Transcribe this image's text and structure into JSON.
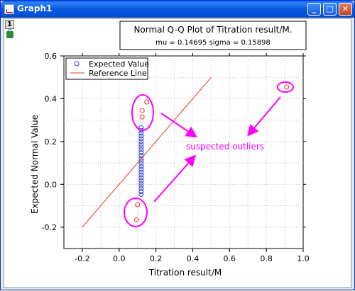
{
  "window": {
    "title": "Graph1",
    "layer_number": "1",
    "buttons": [
      "minimize",
      "maximize",
      "close"
    ]
  },
  "chart_data": {
    "type": "scatter",
    "title": "Normal Q-Q Plot of Titration result/M.",
    "subtitle": "mu = 0.14695   sigma = 0.15898",
    "xlabel": "Titration result/M",
    "ylabel": "Expected Normal Value",
    "xlim": [
      -0.3,
      1.0
    ],
    "ylim": [
      -0.3,
      0.6
    ],
    "xticks": [
      -0.2,
      0.0,
      0.2,
      0.4,
      0.6,
      0.8,
      1.0
    ],
    "xtick_labels": [
      "-0.2",
      "0.0",
      "0.2",
      "0.4",
      "0.6",
      "0.8",
      "1.0"
    ],
    "yticks": [
      -0.2,
      0.0,
      0.2,
      0.4,
      0.6
    ],
    "ytick_labels": [
      "-0.2",
      "0.0",
      "0.2",
      "0.4",
      "0.6"
    ],
    "grid": true,
    "legend": {
      "placement": "top-left",
      "entries": [
        "Expected Value",
        "Reference Line"
      ]
    },
    "series": [
      {
        "name": "Expected Value",
        "mark": "circle",
        "color": "#3344CC",
        "points": [
          [
            0.12,
            0.265
          ],
          [
            0.12,
            0.252
          ],
          [
            0.12,
            0.239
          ],
          [
            0.12,
            0.226
          ],
          [
            0.12,
            0.213
          ],
          [
            0.12,
            0.2
          ],
          [
            0.12,
            0.187
          ],
          [
            0.12,
            0.174
          ],
          [
            0.12,
            0.161
          ],
          [
            0.12,
            0.148
          ],
          [
            0.12,
            0.135
          ],
          [
            0.12,
            0.122
          ],
          [
            0.12,
            0.109
          ],
          [
            0.12,
            0.096
          ],
          [
            0.12,
            0.083
          ],
          [
            0.12,
            0.07
          ],
          [
            0.12,
            0.057
          ],
          [
            0.12,
            0.044
          ],
          [
            0.12,
            0.031
          ],
          [
            0.12,
            0.018
          ],
          [
            0.12,
            0.005
          ],
          [
            0.12,
            -0.008
          ],
          [
            0.12,
            -0.021
          ],
          [
            0.12,
            -0.034
          ],
          [
            0.12,
            -0.047
          ]
        ]
      },
      {
        "name": "suspected outliers",
        "mark": "circle",
        "color": "#E8332A",
        "points": [
          [
            0.15,
            0.385
          ],
          [
            0.125,
            0.345
          ],
          [
            0.125,
            0.315
          ],
          [
            0.1,
            -0.095
          ],
          [
            0.095,
            -0.165
          ],
          [
            0.91,
            0.455
          ]
        ]
      },
      {
        "name": "Reference Line",
        "mark": "line",
        "color": "#E8332A",
        "points": [
          [
            -0.2,
            -0.2
          ],
          [
            0.5,
            0.5
          ]
        ]
      }
    ],
    "annotations": [
      {
        "text": "suspected outliers",
        "color": "#FF00FF"
      }
    ]
  }
}
